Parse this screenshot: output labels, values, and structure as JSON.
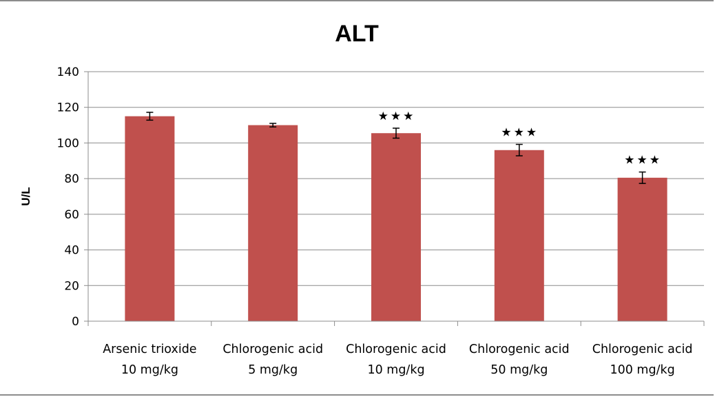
{
  "chart_data": {
    "type": "bar",
    "title": "ALT",
    "xlabel": "",
    "ylabel": "U/L",
    "ylim": [
      0,
      140
    ],
    "yticks": [
      "0",
      "20",
      "40",
      "60",
      "80",
      "100",
      "120",
      "140"
    ],
    "grid": true,
    "categories": [
      [
        "Arsenic trioxide",
        "10 mg/kg"
      ],
      [
        "Chlorogenic acid",
        "5 mg/kg"
      ],
      [
        "Chlorogenic acid",
        "10 mg/kg"
      ],
      [
        "Chlorogenic acid",
        "50 mg/kg"
      ],
      [
        "Chlorogenic acid",
        "100 mg/kg"
      ]
    ],
    "values": [
      115,
      110,
      105.5,
      96,
      80.5
    ],
    "errors": [
      2.2,
      1.0,
      2.8,
      3.2,
      3.2
    ],
    "significance": [
      "",
      "",
      "★★★",
      "★★★",
      "★★★"
    ],
    "bar_color": "#c0504d"
  }
}
